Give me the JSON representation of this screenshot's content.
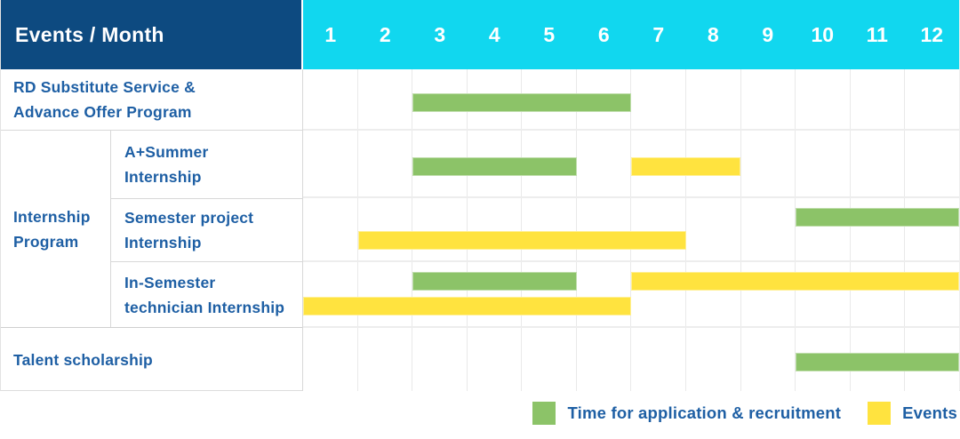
{
  "theme": {
    "header_blue": "#0d4a80",
    "header_cyan": "#11d7ef",
    "text_blue": "#1e5fa4",
    "grid_line": "#e9e9e9"
  },
  "header": {
    "title": "Events / Month",
    "months": [
      "1",
      "2",
      "3",
      "4",
      "5",
      "6",
      "7",
      "8",
      "9",
      "10",
      "11",
      "12"
    ]
  },
  "table": {
    "row_rd_label": "RD Substitute Service &\nAdvance Offer Program",
    "group_label": "Internship\nProgram",
    "row_summer_label": "A+Summer\nInternship",
    "row_semester_label": "Semester project\nInternship",
    "row_technician_label": "In-Semester\ntechnician Internship",
    "row_talent_label": "Talent scholarship"
  },
  "legend": {
    "items": [
      {
        "series": "application",
        "label": "Time for application & recruitment",
        "color": "#8cc368"
      },
      {
        "series": "events",
        "label": "Events",
        "color": "#ffe33f"
      }
    ]
  },
  "chart_data": {
    "type": "bar",
    "subtype": "gantt-schedule",
    "title": "Events / Month",
    "x_axis": {
      "label": "Month",
      "range": [
        1,
        12
      ],
      "ticks": [
        "1",
        "2",
        "3",
        "4",
        "5",
        "6",
        "7",
        "8",
        "9",
        "10",
        "11",
        "12"
      ]
    },
    "series_names": [
      "Time for application & recruitment",
      "Events"
    ],
    "rows": [
      {
        "label": "RD Substitute Service & Advance Offer Program",
        "group": null,
        "bars": [
          {
            "series": "application",
            "start_month": 3,
            "end_month": 6,
            "lane": "center"
          }
        ]
      },
      {
        "label": "A+Summer Internship",
        "group": "Internship Program",
        "bars": [
          {
            "series": "application",
            "start_month": 3,
            "end_month": 5,
            "lane": "center"
          },
          {
            "series": "events",
            "start_month": 7,
            "end_month": 8,
            "lane": "center"
          }
        ]
      },
      {
        "label": "Semester project Internship",
        "group": "Internship Program",
        "bars": [
          {
            "series": "application",
            "start_month": 10,
            "end_month": 12,
            "lane": "upper"
          },
          {
            "series": "events",
            "start_month": 2,
            "end_month": 7,
            "lane": "lower"
          }
        ]
      },
      {
        "label": "In-Semester technician Internship",
        "group": "Internship Program",
        "bars": [
          {
            "series": "application",
            "start_month": 3,
            "end_month": 5,
            "lane": "upper"
          },
          {
            "series": "events",
            "start_month": 7,
            "end_month": 12,
            "lane": "upper"
          },
          {
            "series": "events",
            "start_month": 1,
            "end_month": 6,
            "lane": "lower"
          }
        ]
      },
      {
        "label": "Talent scholarship",
        "group": null,
        "bars": [
          {
            "series": "application",
            "start_month": 10,
            "end_month": 12,
            "lane": "center"
          }
        ]
      }
    ]
  }
}
